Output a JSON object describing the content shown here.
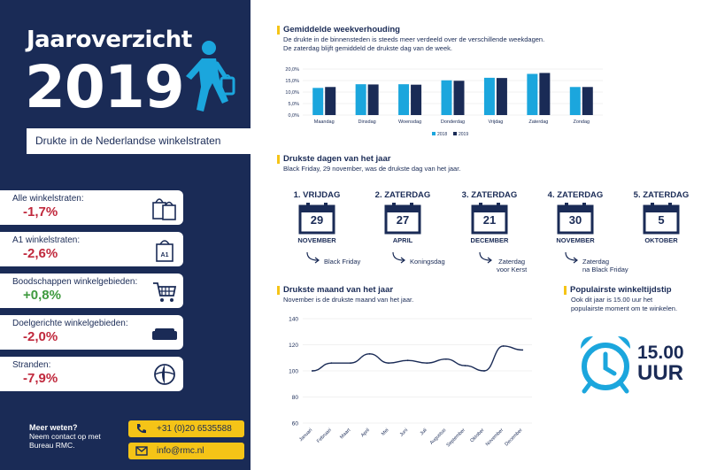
{
  "header": {
    "title": "Jaaroverzicht",
    "year": "2019",
    "subtitle": "Drukte in de Nederlandse winkelstraten"
  },
  "stats": [
    {
      "label": "Alle winkelstraten:",
      "value": "-1,7%",
      "trend": "neg",
      "icon": "shopping-bags-icon"
    },
    {
      "label": "A1 winkelstraten:",
      "value": "-2,6%",
      "trend": "neg",
      "icon": "a1-bag-icon"
    },
    {
      "label": "Boodschappen winkelgebieden:",
      "value": "+0,8%",
      "trend": "pos",
      "icon": "shopping-cart-icon"
    },
    {
      "label": "Doelgerichte winkelgebieden:",
      "value": "-2,0%",
      "trend": "neg",
      "icon": "sofa-icon"
    },
    {
      "label": "Stranden:",
      "value": "-7,9%",
      "trend": "neg",
      "icon": "beach-ball-icon"
    }
  ],
  "contact": {
    "heading": "Meer weten?",
    "line1": "Neem contact op met",
    "line2": "Bureau RMC.",
    "phone": "+31 (0)20 6535588",
    "email": "info@rmc.nl"
  },
  "weekly": {
    "title": "Gemiddelde weekverhouding",
    "text1": "De drukte in de binnensteden is steeds meer verdeeld over de verschillende weekdagen.",
    "text2": "De zaterdag blijft gemiddeld de drukste dag van de week."
  },
  "busiest_days": {
    "title": "Drukste dagen van het jaar",
    "text": "Black Friday, 29 november, was de drukste dag van het jaar.",
    "days": [
      {
        "rank": "1. VRIJDAG",
        "day": "29",
        "month": "NOVEMBER",
        "note1": "Black Friday",
        "note2": ""
      },
      {
        "rank": "2. ZATERDAG",
        "day": "27",
        "month": "APRIL",
        "note1": "Koningsdag",
        "note2": ""
      },
      {
        "rank": "3. ZATERDAG",
        "day": "21",
        "month": "DECEMBER",
        "note1": "Zaterdag",
        "note2": "voor Kerst"
      },
      {
        "rank": "4. ZATERDAG",
        "day": "30",
        "month": "NOVEMBER",
        "note1": "Zaterdag",
        "note2": "na Black Friday"
      },
      {
        "rank": "5. ZATERDAG",
        "day": "5",
        "month": "OKTOBER",
        "note1": "",
        "note2": ""
      }
    ]
  },
  "monthly": {
    "title": "Drukste maand van het jaar",
    "text": "November is de drukste maand van het jaar."
  },
  "popular_time": {
    "title": "Populairste winkeltijdstip",
    "text1": "Ook dit jaar is 15.00 uur het",
    "text2": "populairste moment om te winkelen.",
    "time": "15.00",
    "unit": "UUR"
  },
  "colors": {
    "navy": "#1a2b56",
    "light_blue": "#1ba6dd",
    "yellow": "#f5c417",
    "red": "#c0283c",
    "green": "#3e9a3e"
  },
  "chart_data": [
    {
      "type": "bar",
      "title": "Gemiddelde weekverhouding",
      "categories": [
        "Maandag",
        "Dinsdag",
        "Woensdag",
        "Donderdag",
        "Vrijdag",
        "Zaterdag",
        "Zondag"
      ],
      "series": [
        {
          "name": "2018",
          "values": [
            11.8,
            13.4,
            13.4,
            15.1,
            16.2,
            17.9,
            12.2
          ]
        },
        {
          "name": "2019",
          "values": [
            12.2,
            13.3,
            13.2,
            14.9,
            16.1,
            18.3,
            12.2
          ]
        }
      ],
      "yticks": [
        "0,0%",
        "5,0%",
        "10,0%",
        "15,0%",
        "20,0%"
      ],
      "ylim": [
        0,
        20
      ],
      "legend": "bottom"
    },
    {
      "type": "line",
      "title": "Drukste maand van het jaar",
      "categories": [
        "Januari",
        "Februari",
        "Maart",
        "April",
        "Mei",
        "Juni",
        "Juli",
        "Augustus",
        "September",
        "Oktober",
        "November",
        "December"
      ],
      "series": [
        {
          "name": "2019",
          "values": [
            100,
            106,
            106,
            113,
            106,
            108,
            106,
            109,
            104,
            100,
            119,
            116
          ]
        }
      ],
      "yticks": [
        "60",
        "80",
        "100",
        "120",
        "140"
      ],
      "ylim": [
        60,
        140
      ]
    }
  ]
}
